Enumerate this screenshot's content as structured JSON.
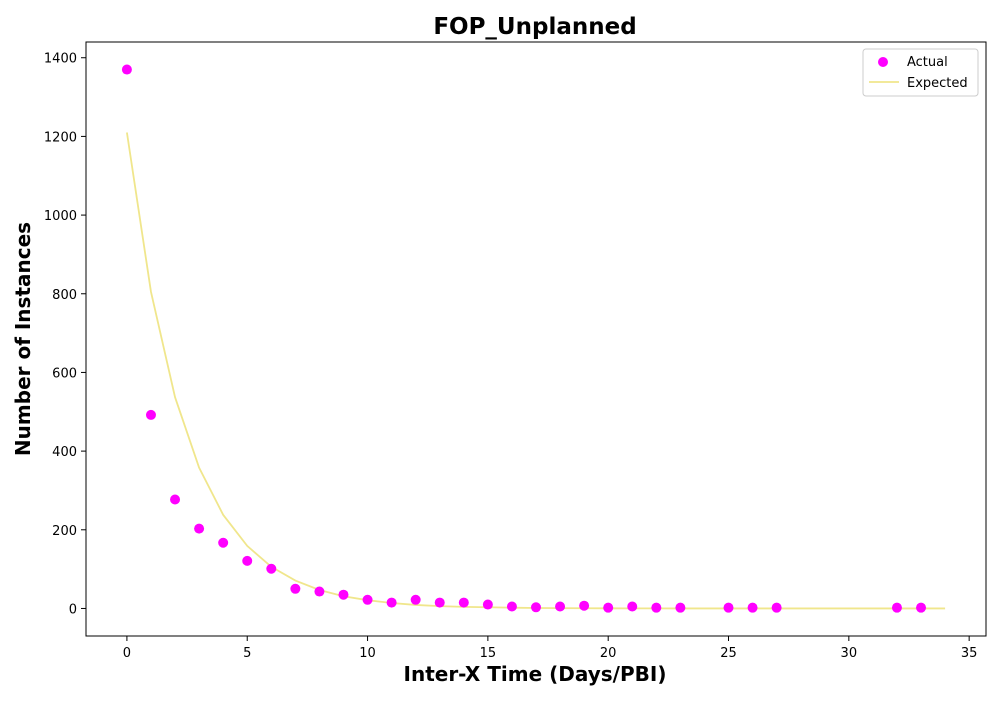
{
  "chart_data": {
    "type": "scatter",
    "title": "FOP_Unplanned",
    "xlabel": "Inter-X Time (Days/PBI)",
    "ylabel": "Number of Instances",
    "xlim": [
      -1.7,
      35.7
    ],
    "ylim": [
      -70,
      1440
    ],
    "xticks": [
      0,
      5,
      10,
      15,
      20,
      25,
      30,
      35
    ],
    "yticks": [
      0,
      200,
      400,
      600,
      800,
      1000,
      1200,
      1400
    ],
    "grid": false,
    "legend_position": "top-right",
    "series": [
      {
        "name": "Actual",
        "kind": "scatter",
        "color": "#ff00ff",
        "points": [
          [
            0,
            1370
          ],
          [
            1,
            492
          ],
          [
            2,
            277
          ],
          [
            3,
            203
          ],
          [
            4,
            167
          ],
          [
            5,
            121
          ],
          [
            6,
            101
          ],
          [
            7,
            50
          ],
          [
            8,
            43
          ],
          [
            9,
            35
          ],
          [
            10,
            22
          ],
          [
            11,
            15
          ],
          [
            12,
            22
          ],
          [
            13,
            15
          ],
          [
            14,
            15
          ],
          [
            15,
            10
          ],
          [
            16,
            5
          ],
          [
            17,
            3
          ],
          [
            18,
            5
          ],
          [
            19,
            7
          ],
          [
            20,
            2
          ],
          [
            21,
            5
          ],
          [
            22,
            2
          ],
          [
            23,
            2
          ],
          [
            25,
            2
          ],
          [
            26,
            2
          ],
          [
            27,
            2
          ],
          [
            32,
            2
          ],
          [
            33,
            2
          ]
        ]
      },
      {
        "name": "Expected",
        "kind": "line",
        "color": "#f0e68c",
        "points": [
          [
            0,
            1210
          ],
          [
            1,
            805
          ],
          [
            2,
            537
          ],
          [
            3,
            358
          ],
          [
            4,
            238
          ],
          [
            5,
            159
          ],
          [
            6,
            106
          ],
          [
            7,
            71
          ],
          [
            8,
            47
          ],
          [
            9,
            31
          ],
          [
            10,
            21
          ],
          [
            11,
            14
          ],
          [
            12,
            9
          ],
          [
            13,
            6
          ],
          [
            14,
            4
          ],
          [
            15,
            3
          ],
          [
            16,
            2
          ],
          [
            17,
            1.2
          ],
          [
            18,
            0.8
          ],
          [
            19,
            0.5
          ],
          [
            20,
            0.4
          ],
          [
            21,
            0.2
          ],
          [
            22,
            0.2
          ],
          [
            23,
            0.1
          ],
          [
            24,
            0.1
          ],
          [
            25,
            0
          ],
          [
            26,
            0
          ],
          [
            27,
            0
          ],
          [
            28,
            0
          ],
          [
            29,
            0
          ],
          [
            30,
            0
          ],
          [
            31,
            0
          ],
          [
            32,
            0
          ],
          [
            33,
            0
          ],
          [
            34,
            0
          ]
        ]
      }
    ]
  }
}
